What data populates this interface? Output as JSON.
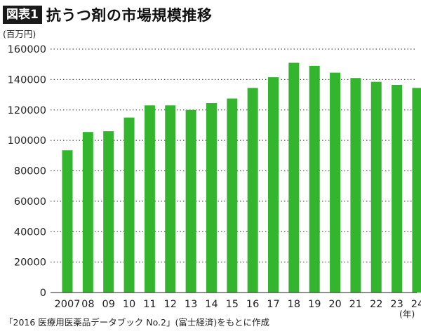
{
  "header": {
    "badge": "図表1",
    "title": "抗うつ剤の市場規模推移"
  },
  "source_note": "「2016 医療用医薬品データブック No.2」(富士経済)をもとに作成",
  "colors": {
    "bar": "#33b52e",
    "grid": "#555555",
    "axis": "#222222",
    "badge_bg": "#1a1a1a"
  },
  "chart_data": {
    "type": "bar",
    "title": "抗うつ剤の市場規模推移",
    "ylabel": "(百万円)",
    "xlabel": "(年)",
    "categories": [
      "2007",
      "08",
      "09",
      "10",
      "11",
      "12",
      "13",
      "14",
      "15",
      "16",
      "17",
      "18",
      "19",
      "20",
      "21",
      "22",
      "23",
      "24"
    ],
    "values": [
      93500,
      105500,
      106000,
      115000,
      123000,
      123000,
      120000,
      124500,
      127500,
      134500,
      141500,
      151000,
      149000,
      144500,
      141000,
      138500,
      136500,
      134500
    ],
    "ylim": [
      0,
      160000
    ],
    "yticks": [
      0,
      20000,
      40000,
      60000,
      80000,
      100000,
      120000,
      140000,
      160000
    ],
    "grid": true,
    "legend": "none"
  }
}
